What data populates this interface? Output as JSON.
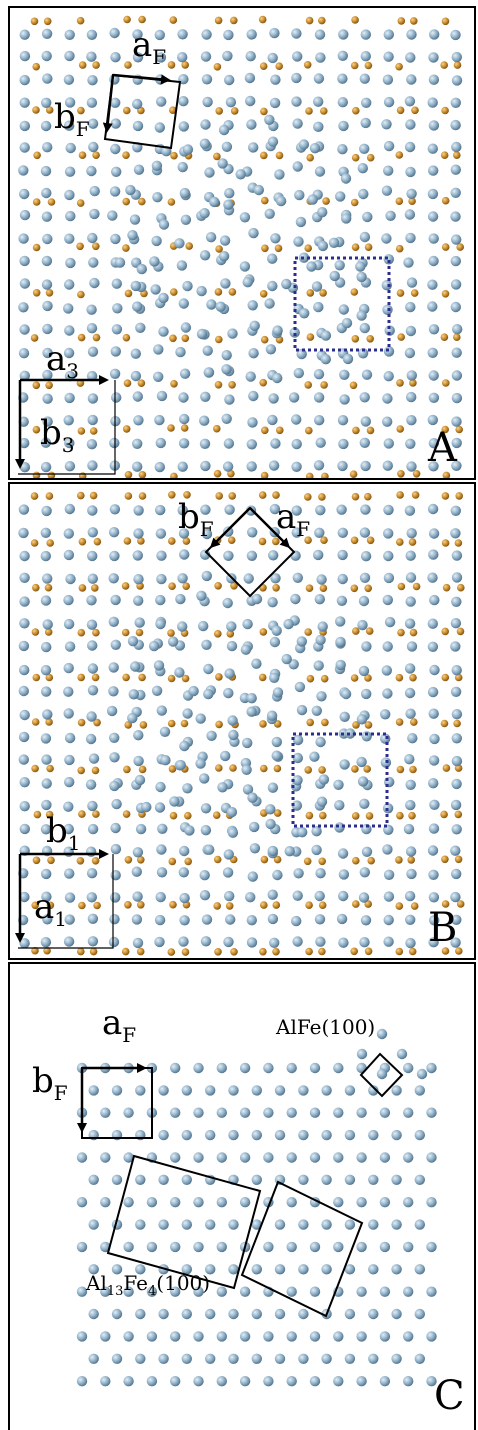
{
  "panels": [
    {
      "id": "A",
      "label": "A",
      "vec_1_main": "a",
      "vec_1_sub": "F",
      "vec_2_main": "b",
      "vec_2_sub": "F",
      "vec_3_main": "a",
      "vec_3_sub": "3",
      "vec_4_main": "b",
      "vec_4_sub": "3"
    },
    {
      "id": "B",
      "label": "B",
      "vec_1_main": "b",
      "vec_1_sub": "F",
      "vec_2_main": "a",
      "vec_2_sub": "F",
      "vec_3_main": "b",
      "vec_3_sub": "1",
      "vec_4_main": "a",
      "vec_4_sub": "1"
    },
    {
      "id": "C",
      "label": "C",
      "vec_1_main": "a",
      "vec_1_sub": "F",
      "vec_2_main": "b",
      "vec_2_sub": "F",
      "alfe_label": "AlFe(100)",
      "al13fe4_p1": "Al",
      "al13fe4_s1": "13",
      "al13fe4_p2": "Fe",
      "al13fe4_s2": "4",
      "al13fe4_p3": "(100)"
    }
  ],
  "atom_colors": {
    "al": "#8fb0c8",
    "al_edge": "#4e6f86",
    "fe": "#c88a2a",
    "fe_edge": "#7a4f10",
    "dotted_cell": "#2b2e8c"
  }
}
